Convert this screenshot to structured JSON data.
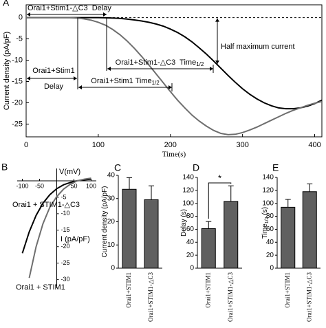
{
  "chart_data": [
    {
      "type": "line",
      "label": "A",
      "xlabel": "Time(s)",
      "ylabel": "Current density (pA/pF)",
      "x": [
        0,
        10,
        20,
        30,
        40,
        50,
        60,
        70,
        80,
        90,
        100,
        110,
        120,
        130,
        140,
        150,
        160,
        170,
        180,
        190,
        200,
        210,
        220,
        230,
        240,
        250,
        260,
        270,
        280,
        290,
        300,
        310,
        320,
        330,
        340,
        350,
        360,
        370,
        380,
        390,
        400,
        410
      ],
      "series": [
        {
          "color": "#000000",
          "values": [
            0,
            0,
            0,
            0,
            0,
            0,
            0,
            0,
            0,
            0,
            0,
            -0.05,
            -0.1,
            -0.2,
            -0.35,
            -0.55,
            -0.8,
            -1.1,
            -1.5,
            -2.0,
            -2.7,
            -3.5,
            -4.5,
            -5.7,
            -7.1,
            -8.6,
            -10.2,
            -11.9,
            -13.6,
            -15.2,
            -16.7,
            -18.0,
            -19.1,
            -20.0,
            -20.7,
            -21.2,
            -21.4,
            -21.4,
            -21.2,
            -20.8,
            -20.2,
            -19.4
          ]
        },
        {
          "color": "#6e6e6e",
          "values": [
            0,
            0,
            0,
            0,
            0,
            0,
            0,
            -0.1,
            -0.3,
            -0.6,
            -1.1,
            -1.8,
            -2.8,
            -4.0,
            -5.5,
            -7.2,
            -9.1,
            -11.1,
            -13.2,
            -15.3,
            -17.4,
            -19.4,
            -21.2,
            -22.9,
            -24.3,
            -25.5,
            -26.5,
            -27.2,
            -27.5,
            -27.4,
            -27.0,
            -26.4,
            -25.7,
            -24.9,
            -24.1,
            -23.3,
            -22.5,
            -21.8,
            -21.2,
            -20.6,
            -20.1,
            -19.7
          ]
        }
      ],
      "xlim": [
        0,
        410
      ],
      "ylim": [
        -28,
        3
      ],
      "xticks": [
        0,
        100,
        200,
        300,
        400
      ],
      "yticks": [
        0,
        -5,
        -10,
        -15,
        -20,
        -25
      ],
      "annotations": [
        {
          "text": "Orai1+Stim1-△C3  Delay"
        },
        {
          "lines": [
            "Orai1+Stim1",
            "Delay"
          ]
        },
        {
          "text": "Orai1+Stim1-△C3  Time",
          "sub": "1/2"
        },
        {
          "text": "Orai1+Stim1 Time",
          "sub": "1/2"
        },
        {
          "text": "Half maximum current"
        }
      ]
    },
    {
      "type": "iv",
      "label": "B",
      "xlabel": "V(mV)",
      "ylabel": "I (pA/pF)",
      "x": [
        -100,
        -80,
        -60,
        -40,
        -20,
        0,
        20,
        40,
        60,
        80,
        100
      ],
      "series": [
        {
          "name": "Orai1 + STIM1-△C3",
          "color": "#000000",
          "values": [
            -22,
            -15.5,
            -10.5,
            -6.8,
            -4.2,
            -2.4,
            -1.2,
            -0.5,
            0,
            0.3,
            0.5
          ]
        },
        {
          "name": "Orai1 + STIM1",
          "color": "#6e6e6e",
          "values": [
            null,
            -29.5,
            -20,
            -13,
            -8,
            -4.8,
            -2.5,
            -1,
            0,
            0.5,
            0.8
          ]
        }
      ],
      "xlim": [
        -115,
        115
      ],
      "ylim": [
        -33,
        5
      ],
      "xticks": [
        -100,
        -50,
        50,
        100
      ],
      "yticks": [
        -5,
        -10,
        -15,
        -20,
        -25,
        -30
      ]
    },
    {
      "type": "bar",
      "label": "C",
      "ylabel": "Current density (pA/pF)",
      "categories": [
        "Orai1+STIM1",
        "Orai1+STIM1-△C3"
      ],
      "values": [
        34,
        29.5
      ],
      "errors": [
        5,
        6
      ],
      "color": "#606060",
      "ylim": [
        0,
        40
      ],
      "yticks": [
        0,
        10,
        20,
        30,
        40
      ]
    },
    {
      "type": "bar",
      "label": "D",
      "ylabel": "Delay (s)",
      "categories": [
        "Orai1+STIM1",
        "Orai1+STIM1-△C3"
      ],
      "values": [
        61,
        103
      ],
      "errors": [
        11,
        24
      ],
      "color": "#606060",
      "ylim": [
        0,
        140
      ],
      "yticks": [
        0,
        20,
        40,
        60,
        80,
        100,
        120,
        140
      ],
      "significance": "*"
    },
    {
      "type": "bar",
      "label": "E",
      "ylabel": "Time",
      "ylabel_sub": "1/2",
      "ylabel_unit": "(s)",
      "categories": [
        "Orai1+STIM1",
        "Orai1+STIM1-△C3"
      ],
      "values": [
        94,
        118
      ],
      "errors": [
        12,
        12
      ],
      "color": "#606060",
      "ylim": [
        0,
        140
      ],
      "yticks": [
        0,
        20,
        40,
        60,
        80,
        100,
        120,
        140
      ]
    }
  ]
}
